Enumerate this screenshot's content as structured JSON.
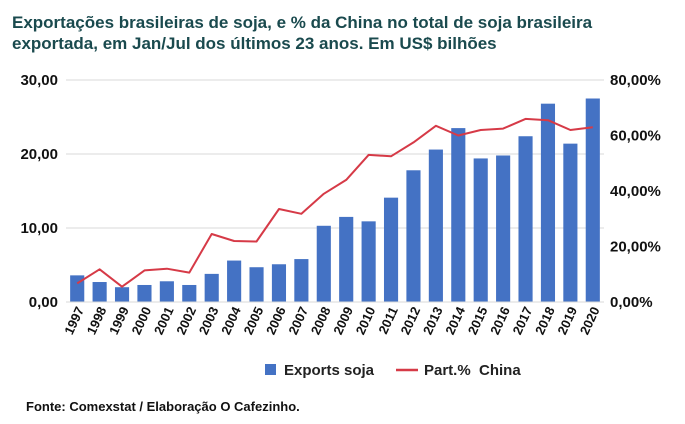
{
  "title": "Exportações brasileiras de soja,  e % da China no total de soja brasileira exportada, em Jan/Jul dos últimos 23 anos. Em US$ bilhões",
  "source": "Fonte: Comexstat / Elaboração O Cafezinho.",
  "chart_data": {
    "type": "bar+line",
    "title": "Exportações brasileiras de soja,  e % da China no total de soja brasileira exportada, em Jan/Jul dos últimos 23 anos. Em US$ bilhões",
    "categories": [
      "1997",
      "1998",
      "1999",
      "2000",
      "2001",
      "2002",
      "2003",
      "2004",
      "2005",
      "2006",
      "2007",
      "2008",
      "2009",
      "2010",
      "2011",
      "2012",
      "2013",
      "2014",
      "2015",
      "2016",
      "2017",
      "2018",
      "2019",
      "2020"
    ],
    "series": [
      {
        "name": "Exports soja",
        "type": "bar",
        "axis": "left",
        "color": "#4472c4",
        "values": [
          3.6,
          2.7,
          2.0,
          2.3,
          2.8,
          2.3,
          3.8,
          5.6,
          4.7,
          5.1,
          5.8,
          10.3,
          11.5,
          10.9,
          14.1,
          17.8,
          20.6,
          23.5,
          19.4,
          19.8,
          22.4,
          26.8,
          21.4,
          27.5
        ]
      },
      {
        "name": "Part.%  China",
        "type": "line",
        "axis": "right",
        "color": "#d63a47",
        "values": [
          0.067,
          0.118,
          0.055,
          0.114,
          0.12,
          0.106,
          0.245,
          0.22,
          0.218,
          0.335,
          0.318,
          0.39,
          0.44,
          0.53,
          0.525,
          0.575,
          0.635,
          0.6,
          0.62,
          0.625,
          0.66,
          0.655,
          0.62,
          0.63
        ]
      }
    ],
    "y_left": {
      "ylim": [
        0,
        30
      ],
      "ticks": [
        "0,00",
        "10,00",
        "20,00",
        "30,00"
      ]
    },
    "y_right": {
      "ylim": [
        0,
        0.8
      ],
      "ticks": [
        "0,00%",
        "20,00%",
        "40,00%",
        "60,00%",
        "80,00%"
      ]
    },
    "grid": true,
    "legend_position": "bottom"
  }
}
